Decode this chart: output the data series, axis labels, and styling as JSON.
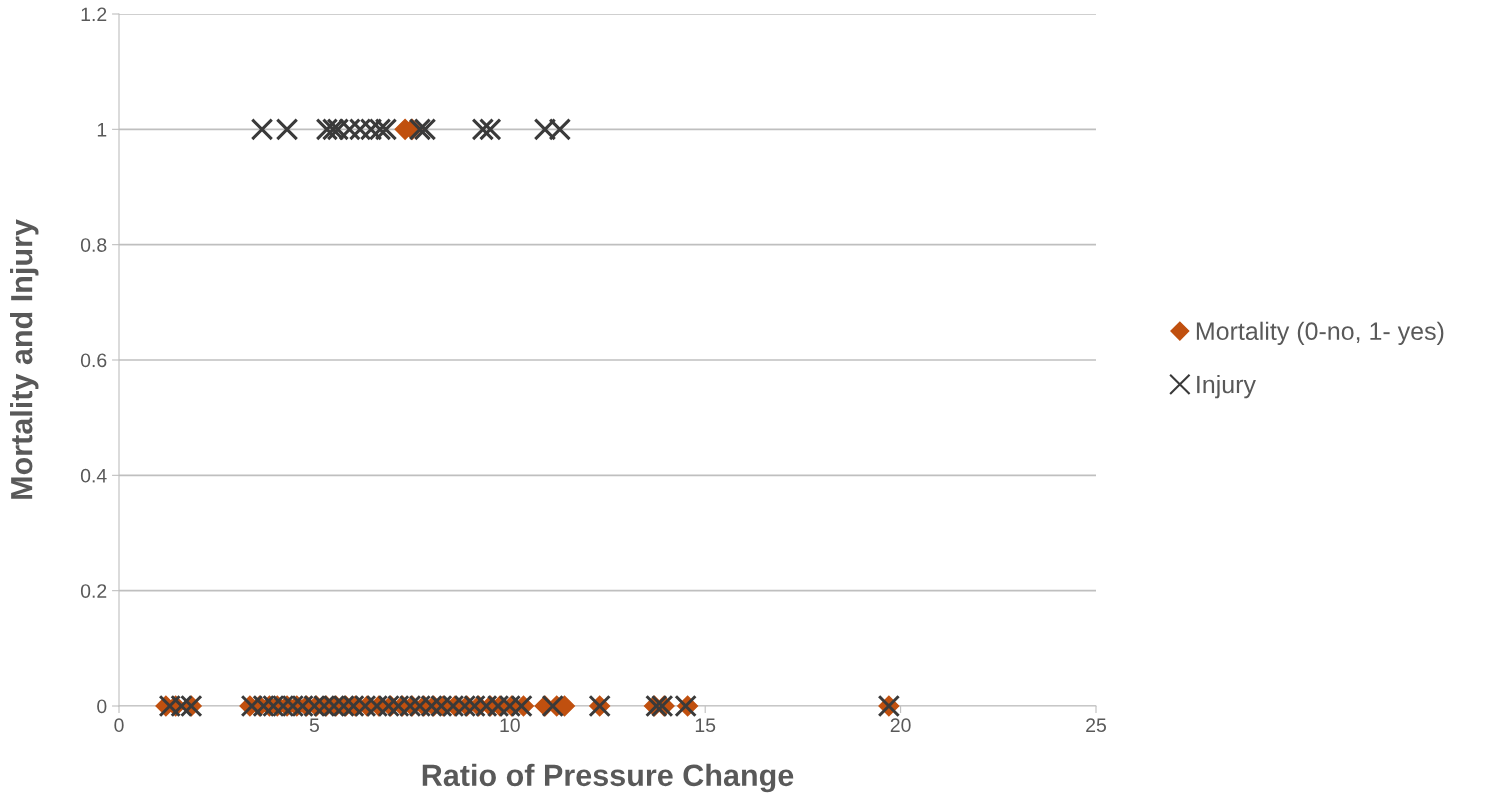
{
  "chart_data": {
    "type": "scatter",
    "xlabel": "Ratio of Pressure Change",
    "ylabel": "Mortality and Injury",
    "xlim": [
      0,
      25
    ],
    "xticks": [
      0,
      5,
      10,
      15,
      20,
      25
    ],
    "ylim": [
      0,
      1.2
    ],
    "yticks": [
      0,
      0.2,
      0.4,
      0.6,
      0.8,
      1,
      1.2
    ],
    "grid": "y",
    "legend": "right",
    "series": [
      {
        "name": "Mortality (0-no, 1- yes)",
        "color": "#c0500f",
        "marker": "diamond",
        "x": [
          7.32,
          7.5,
          1.2,
          1.45,
          1.85,
          3.35,
          3.6,
          3.85,
          4.05,
          4.3,
          4.55,
          4.8,
          5.05,
          5.3,
          5.55,
          5.8,
          6.05,
          6.35,
          6.65,
          6.95,
          7.25,
          7.5,
          7.8,
          8.05,
          8.3,
          8.6,
          8.9,
          9.2,
          9.5,
          9.75,
          10.05,
          10.35,
          10.9,
          11.2,
          11.4,
          12.3,
          13.7,
          13.95,
          14.55,
          19.7
        ],
        "values": [
          1,
          1,
          0,
          0,
          0,
          0,
          0,
          0,
          0,
          0,
          0,
          0,
          0,
          0,
          0,
          0,
          0,
          0,
          0,
          0,
          0,
          0,
          0,
          0,
          0,
          0,
          0,
          0,
          0,
          0,
          0,
          0,
          0,
          0,
          0,
          0,
          0,
          0,
          0,
          0
        ]
      },
      {
        "name": "Injury",
        "color": "#3a3a3a",
        "marker": "cross",
        "x": [
          3.66,
          4.3,
          5.32,
          5.48,
          5.6,
          5.9,
          6.17,
          6.45,
          6.68,
          6.83,
          7.7,
          7.83,
          9.31,
          9.5,
          10.9,
          11.28,
          1.3,
          1.6,
          1.85,
          3.4,
          3.7,
          3.95,
          4.2,
          4.45,
          4.7,
          5.0,
          5.25,
          5.5,
          5.75,
          6.0,
          6.3,
          6.6,
          6.9,
          7.15,
          7.45,
          7.7,
          8.0,
          8.25,
          8.55,
          8.85,
          9.1,
          9.4,
          9.7,
          10.0,
          10.3,
          11.1,
          12.3,
          13.75,
          13.9,
          14.5,
          19.7
        ],
        "values": [
          1,
          1,
          1,
          1,
          1,
          1,
          1,
          1,
          1,
          1,
          1,
          1,
          1,
          1,
          1,
          1,
          0,
          0,
          0,
          0,
          0,
          0,
          0,
          0,
          0,
          0,
          0,
          0,
          0,
          0,
          0,
          0,
          0,
          0,
          0,
          0,
          0,
          0,
          0,
          0,
          0,
          0,
          0,
          0,
          0,
          0,
          0,
          0,
          0,
          0,
          0
        ]
      }
    ]
  }
}
